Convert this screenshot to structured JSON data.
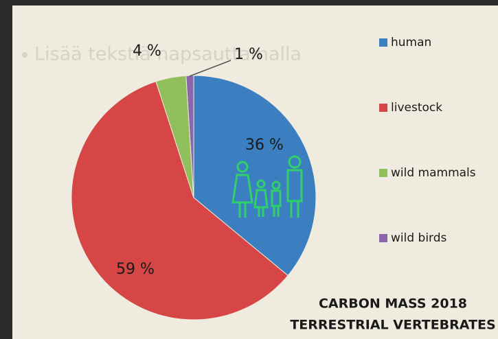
{
  "placeholder": "Lisää tekstiä napsauttamalla",
  "chart_data": {
    "type": "pie",
    "title": "CARBON MASS 2018",
    "subtitle": "TERRESTRIAL VERTEBRATES",
    "categories": [
      "human",
      "livestock",
      "wild mammals",
      "wild birds"
    ],
    "values": [
      36,
      59,
      4,
      1
    ],
    "value_labels": [
      "36 %",
      "59 %",
      "4 %",
      "1 %"
    ],
    "colors": [
      "#3b7fc1",
      "#d64646",
      "#91bf5b",
      "#8c66ab"
    ],
    "legend": "right"
  }
}
